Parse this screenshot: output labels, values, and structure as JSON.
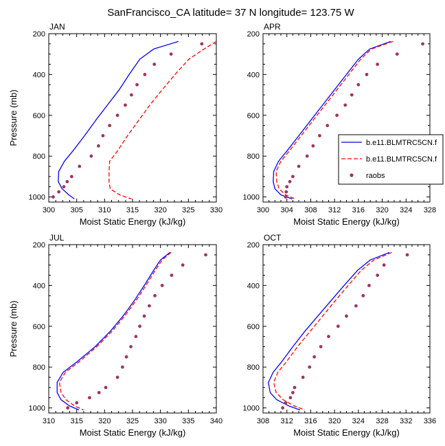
{
  "title": "SanFrancisco_CA  latitude= 37 N longitude= 123.75 W",
  "colors": {
    "model1": "#0000ff",
    "model2": "#ff0000",
    "obs": "#a0365a"
  },
  "legend": {
    "placement": "right of APR panel",
    "entries": [
      {
        "label": "b.e11.BLMTRC5CN.f",
        "style": "solid",
        "color": "#0000ff"
      },
      {
        "label": "b.e11.BLMTRC5CN.f",
        "style": "dashed",
        "color": "#ff0000"
      },
      {
        "label": "raobs",
        "style": "markers",
        "color": "#a0365a"
      }
    ]
  },
  "chart_data": [
    {
      "type": "line",
      "panel": "JAN",
      "title": "JAN",
      "xlabel": "Moist Static Energy (kJ/kg)",
      "ylabel": "Pressure (mb)",
      "xlim": [
        300,
        330
      ],
      "ylim": [
        1025,
        200
      ],
      "xticks": [
        300,
        305,
        310,
        315,
        320,
        325,
        330
      ],
      "yticks": [
        200,
        400,
        600,
        800,
        1000
      ],
      "series": [
        {
          "name": "b.e11.BLMTRC5CN.f",
          "style": "solid",
          "color": "#0000ff",
          "x": [
            323.2,
            318.8,
            316.3,
            314.4,
            312.6,
            310.5,
            308.4,
            306.4,
            304.3,
            302.8,
            301.8,
            301.7,
            302.4,
            303.6,
            304.6
          ],
          "y": [
            238,
            275,
            325,
            400,
            475,
            550,
            625,
            700,
            775,
            825,
            875,
            925,
            960,
            990,
            1010
          ]
        },
        {
          "name": "b.e11.BLMTRC5CN.f",
          "style": "dashed",
          "color": "#ff0000",
          "x": [
            330.0,
            327.8,
            325.1,
            322.6,
            320.3,
            318.1,
            316.1,
            314.1,
            312.3,
            310.9,
            310.8,
            310.8,
            311.0,
            312.7,
            314.8
          ],
          "y": [
            238,
            275,
            325,
            400,
            475,
            550,
            625,
            700,
            775,
            825,
            875,
            925,
            960,
            990,
            1010
          ]
        },
        {
          "name": "raobs",
          "style": "markers",
          "color": "#a0365a",
          "x": [
            327.4,
            321.9,
            318.9,
            317.2,
            315.8,
            314.8,
            313.7,
            312.3,
            310.9,
            309.7,
            308.9,
            307.6,
            305.5,
            304.1,
            303.3,
            302.7,
            301.8,
            300.8
          ],
          "y": [
            250,
            300,
            350,
            400,
            450,
            500,
            550,
            600,
            650,
            700,
            750,
            800,
            850,
            900,
            925,
            950,
            975,
            1000
          ]
        }
      ]
    },
    {
      "type": "line",
      "panel": "APR",
      "title": "APR",
      "xlabel": "Moist Static Energy (kJ/kg)",
      "ylabel": "",
      "xlim": [
        300,
        328
      ],
      "ylim": [
        1025,
        200
      ],
      "xticks": [
        300,
        304,
        308,
        312,
        316,
        320,
        324,
        328
      ],
      "yticks": [
        200,
        400,
        600,
        800,
        1000
      ],
      "series": [
        {
          "name": "b.e11.BLMTRC5CN.f",
          "style": "solid",
          "color": "#0000ff",
          "x": [
            321.4,
            317.9,
            316.0,
            314.0,
            312.0,
            310.0,
            308.0,
            306.0,
            304.0,
            302.6,
            301.8,
            301.7,
            302.0,
            303.0,
            304.9
          ],
          "y": [
            238,
            275,
            325,
            400,
            475,
            550,
            625,
            700,
            775,
            825,
            875,
            925,
            960,
            990,
            1010
          ]
        },
        {
          "name": "b.e11.BLMTRC5CN.f",
          "style": "dashed",
          "color": "#ff0000",
          "x": [
            321.8,
            318.2,
            316.4,
            314.4,
            312.4,
            310.4,
            308.4,
            306.4,
            304.4,
            303.0,
            302.2,
            302.3,
            302.7,
            303.8,
            305.4
          ],
          "y": [
            238,
            275,
            325,
            400,
            475,
            550,
            625,
            700,
            775,
            825,
            875,
            925,
            960,
            990,
            1010
          ]
        },
        {
          "name": "raobs",
          "style": "markers",
          "color": "#a0365a",
          "x": [
            326.8,
            322.5,
            319.2,
            317.4,
            316.0,
            314.9,
            313.8,
            312.4,
            310.8,
            309.5,
            308.4,
            307.4,
            306.0,
            305.0,
            304.5,
            304.0,
            303.9,
            303.8
          ],
          "y": [
            250,
            300,
            350,
            400,
            450,
            500,
            550,
            600,
            650,
            700,
            750,
            800,
            850,
            900,
            925,
            950,
            975,
            1000
          ]
        }
      ]
    },
    {
      "type": "line",
      "panel": "JUL",
      "title": "JUL",
      "xlabel": "Moist Static Energy (kJ/kg)",
      "ylabel": "Pressure (mb)",
      "xlim": [
        310,
        340
      ],
      "ylim": [
        1025,
        200
      ],
      "xticks": [
        310,
        315,
        320,
        325,
        330,
        335,
        340
      ],
      "yticks": [
        200,
        400,
        600,
        800,
        1000
      ],
      "series": [
        {
          "name": "b.e11.BLMTRC5CN.f",
          "style": "solid",
          "color": "#0000ff",
          "x": [
            331.7,
            330.0,
            328.8,
            327.1,
            325.3,
            323.3,
            321.0,
            318.3,
            315.0,
            312.6,
            311.5,
            311.5,
            312.2,
            313.7,
            315.4
          ],
          "y": [
            238,
            275,
            325,
            400,
            475,
            550,
            625,
            700,
            775,
            825,
            875,
            925,
            960,
            990,
            1010
          ]
        },
        {
          "name": "b.e11.BLMTRC5CN.f",
          "style": "dashed",
          "color": "#ff0000",
          "x": [
            331.9,
            330.3,
            329.1,
            327.4,
            325.6,
            323.6,
            321.3,
            318.6,
            315.4,
            313.0,
            311.9,
            312.2,
            313.1,
            314.6,
            316.2
          ],
          "y": [
            238,
            275,
            325,
            400,
            475,
            550,
            625,
            700,
            775,
            825,
            875,
            925,
            960,
            990,
            1010
          ]
        },
        {
          "name": "raobs",
          "style": "markers",
          "color": "#a0365a",
          "x": [
            338.1,
            334.0,
            332.0,
            330.3,
            329.0,
            328.0,
            327.1,
            326.3,
            325.6,
            324.7,
            323.9,
            323.2,
            322.3,
            320.2,
            319.0,
            317.3,
            315.0,
            313.4
          ],
          "y": [
            250,
            300,
            350,
            400,
            450,
            500,
            550,
            600,
            650,
            700,
            750,
            800,
            850,
            900,
            925,
            950,
            975,
            1000
          ]
        }
      ]
    },
    {
      "type": "line",
      "panel": "OCT",
      "title": "OCT",
      "xlabel": "Moist Static Energy (kJ/kg)",
      "ylabel": "",
      "xlim": [
        308,
        336
      ],
      "ylim": [
        1025,
        200
      ],
      "xticks": [
        308,
        312,
        316,
        320,
        324,
        328,
        332,
        336
      ],
      "yticks": [
        200,
        400,
        600,
        800,
        1000
      ],
      "series": [
        {
          "name": "b.e11.BLMTRC5CN.f",
          "style": "solid",
          "color": "#0000ff",
          "x": [
            329.2,
            326.0,
            323.9,
            321.6,
            319.4,
            317.2,
            315.0,
            313.0,
            311.1,
            309.7,
            308.9,
            309.2,
            310.3,
            312.3,
            314.2
          ],
          "y": [
            238,
            275,
            325,
            400,
            475,
            550,
            625,
            700,
            775,
            825,
            875,
            925,
            960,
            990,
            1010
          ]
        },
        {
          "name": "b.e11.BLMTRC5CN.f",
          "style": "dashed",
          "color": "#ff0000",
          "x": [
            329.6,
            326.6,
            324.5,
            322.3,
            320.1,
            318.0,
            315.9,
            313.8,
            311.9,
            310.5,
            309.8,
            310.2,
            311.4,
            313.2,
            315.0
          ],
          "y": [
            238,
            275,
            325,
            400,
            475,
            550,
            625,
            700,
            775,
            825,
            875,
            925,
            960,
            990,
            1010
          ]
        },
        {
          "name": "raobs",
          "style": "markers",
          "color": "#a0365a",
          "x": [
            332.2,
            328.3,
            327.2,
            325.8,
            324.8,
            323.6,
            322.0,
            320.6,
            319.0,
            317.7,
            316.6,
            315.8,
            314.7,
            313.3,
            313.0,
            312.6,
            311.8,
            311.3
          ],
          "y": [
            250,
            300,
            350,
            400,
            450,
            500,
            550,
            600,
            650,
            700,
            750,
            800,
            850,
            900,
            925,
            950,
            975,
            1000
          ]
        }
      ]
    }
  ]
}
